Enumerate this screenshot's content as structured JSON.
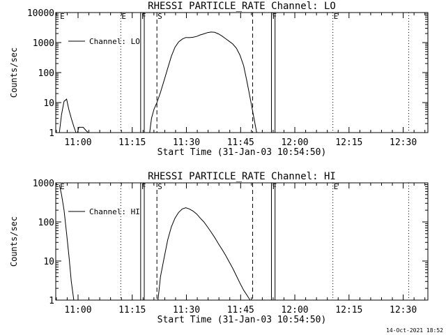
{
  "chart_data": [
    {
      "type": "line",
      "title": "RHESSI PARTICLE_RATE Channel: LO",
      "xlabel": "Start Time (31-Jan-03 10:54:50)",
      "ylabel": "Counts/sec",
      "yscale": "log",
      "ylim": [
        1,
        10000
      ],
      "xlim_minutes": [
        -1.0,
        102.0
      ],
      "x_tick_minutes": [
        5.17,
        20.17,
        35.17,
        50.17,
        65.17,
        80.17,
        95.17
      ],
      "x_tick_labels": [
        "11:00",
        "11:15",
        "11:30",
        "11:45",
        "12:00",
        "12:15",
        "12:30"
      ],
      "y_tick_values": [
        1,
        10,
        100,
        1000,
        10000
      ],
      "y_tick_labels": [
        "1",
        "10",
        "100",
        "1000",
        "10000"
      ],
      "legend": {
        "label": "Channel: LO",
        "position": "top-left"
      },
      "series": [
        {
          "name": "Channel: LO",
          "x": [
            0.0,
            0.6,
            1.3,
            2.0,
            2.6,
            3.3,
            4.0,
            4.6,
            5.0,
            5.4,
            6.0,
            6.6,
            7.3,
            8.0
          ],
          "y": [
            1.0,
            4.0,
            11.0,
            13.0,
            6.0,
            3.0,
            1.6,
            1.0,
            1.0,
            1.5,
            1.5,
            1.5,
            1.2,
            1.0
          ]
        },
        {
          "name": "Channel: LO",
          "x": [
            25.0,
            25.5,
            26.2,
            27.0,
            28.0,
            29.0,
            30.0,
            31.0,
            32.0,
            33.0,
            34.0,
            35.0,
            36.0,
            37.0,
            38.0,
            39.0,
            40.0,
            41.0,
            42.0,
            43.0,
            44.0,
            45.0,
            46.0,
            47.0,
            48.0,
            49.0,
            50.0,
            51.0,
            51.8,
            52.5,
            53.2,
            54.0,
            54.6
          ],
          "y": [
            1,
            3.0,
            6.0,
            10,
            22,
            55,
            140,
            350,
            700,
            1050,
            1300,
            1480,
            1460,
            1500,
            1600,
            1800,
            1950,
            2150,
            2250,
            2200,
            1950,
            1650,
            1350,
            1100,
            900,
            650,
            380,
            170,
            60,
            22,
            8.0,
            2.5,
            1
          ]
        }
      ],
      "vlines": [
        {
          "x": 17.0,
          "style": "dotted",
          "label": "E"
        },
        {
          "x": 22.5,
          "style": "solid",
          "label": "F"
        },
        {
          "x": 23.5,
          "style": "solid",
          "label": ""
        },
        {
          "x": 27.0,
          "style": "dashed",
          "label": "S"
        },
        {
          "x": 53.5,
          "style": "dashed",
          "label": ""
        },
        {
          "x": 58.7,
          "style": "solid",
          "label": "F"
        },
        {
          "x": 59.7,
          "style": "solid",
          "label": ""
        },
        {
          "x": 75.7,
          "style": "dotted",
          "label": "E"
        },
        {
          "x": 96.7,
          "style": "dotted",
          "label": ""
        }
      ],
      "edge_labels": [
        {
          "x": 0.0,
          "label": "E"
        }
      ]
    },
    {
      "type": "line",
      "title": "RHESSI PARTICLE_RATE Channel: HI",
      "xlabel": "Start Time (31-Jan-03 10:54:50)",
      "ylabel": "Counts/sec",
      "yscale": "log",
      "ylim": [
        1,
        1000
      ],
      "xlim_minutes": [
        -1.0,
        102.0
      ],
      "x_tick_minutes": [
        5.17,
        20.17,
        35.17,
        50.17,
        65.17,
        80.17,
        95.17
      ],
      "x_tick_labels": [
        "11:00",
        "11:15",
        "11:30",
        "11:45",
        "12:00",
        "12:15",
        "12:30"
      ],
      "y_tick_values": [
        1,
        10,
        100,
        1000
      ],
      "y_tick_labels": [
        "1",
        "10",
        "100",
        "1000"
      ],
      "legend": {
        "label": "Channel: HI",
        "position": "top-left"
      },
      "series": [
        {
          "name": "Channel: HI",
          "x": [
            0.0,
            0.6,
            1.3,
            2.0,
            2.7,
            3.3,
            4.0
          ],
          "y": [
            900,
            500,
            200,
            50,
            12,
            3,
            1
          ]
        },
        {
          "name": "Channel: HI",
          "x": [
            27.3,
            28.0,
            29.0,
            30.0,
            31.0,
            32.0,
            33.0,
            34.0,
            35.0,
            36.0,
            37.0,
            38.0,
            39.0,
            40.0,
            41.0,
            42.0,
            43.0,
            44.0,
            45.0,
            46.0,
            47.0,
            48.0,
            49.0,
            50.0,
            51.0,
            52.0,
            52.8
          ],
          "y": [
            1,
            4,
            12,
            35,
            75,
            125,
            175,
            215,
            230,
            215,
            190,
            160,
            125,
            100,
            75,
            55,
            40,
            28,
            20,
            14,
            9.5,
            6.5,
            4.2,
            2.7,
            1.8,
            1.3,
            1
          ]
        }
      ],
      "vlines": [
        {
          "x": 17.0,
          "style": "dotted",
          "label": ""
        },
        {
          "x": 22.5,
          "style": "solid",
          "label": "F"
        },
        {
          "x": 23.5,
          "style": "solid",
          "label": ""
        },
        {
          "x": 27.0,
          "style": "dashed",
          "label": "S"
        },
        {
          "x": 53.5,
          "style": "dashed",
          "label": ""
        },
        {
          "x": 58.7,
          "style": "solid",
          "label": "F"
        },
        {
          "x": 59.7,
          "style": "solid",
          "label": ""
        },
        {
          "x": 75.7,
          "style": "dotted",
          "label": "E"
        },
        {
          "x": 96.7,
          "style": "dotted",
          "label": ""
        }
      ],
      "edge_labels": [
        {
          "x": 0.0,
          "label": "E"
        }
      ]
    }
  ],
  "footer": {
    "timestamp": "14-Oct-2021 18:52"
  },
  "colors": {
    "line": "#000000",
    "background": "#ffffff"
  }
}
